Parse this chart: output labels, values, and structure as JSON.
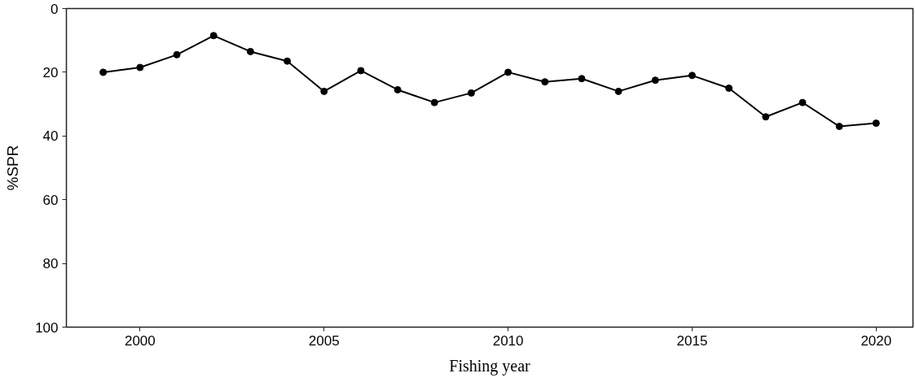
{
  "chart_data": {
    "type": "line",
    "xlabel": "Fishing year",
    "ylabel": "%SPR",
    "x": [
      1999,
      2000,
      2001,
      2002,
      2003,
      2004,
      2005,
      2006,
      2007,
      2008,
      2009,
      2010,
      2011,
      2012,
      2013,
      2014,
      2015,
      2016,
      2017,
      2018,
      2019,
      2020
    ],
    "series": [
      {
        "color": "#000000",
        "values": [
          20,
          18.5,
          14.5,
          8.5,
          13.5,
          16.5,
          26,
          19.5,
          25.5,
          29.5,
          26.5,
          20,
          23,
          22,
          26,
          22.5,
          21,
          25,
          34,
          29.5,
          37,
          36
        ]
      }
    ],
    "xlim": [
      1998,
      2021
    ],
    "ylim": [
      100,
      0
    ],
    "xticks": [
      2000,
      2005,
      2010,
      2015,
      2020
    ],
    "yticks": [
      0,
      20,
      40,
      60,
      80,
      100
    ],
    "grid": false,
    "marker": "circle",
    "line_style": "solid"
  }
}
